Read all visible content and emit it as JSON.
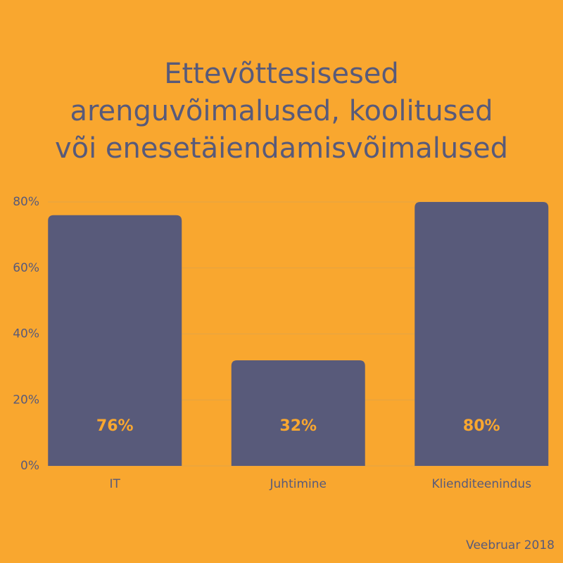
{
  "chart_data": {
    "type": "bar",
    "title": [
      "Ettevõttesisesed",
      "arenguvõimalused, koolitused",
      "või enesetäiendamisvõimalused"
    ],
    "categories": [
      "IT",
      "Juhtimine",
      "Klienditeenindus"
    ],
    "values": [
      76,
      32,
      80
    ],
    "value_labels": [
      "76%",
      "32%",
      "80%"
    ],
    "color": "#585a7a",
    "ylim": [
      0,
      80
    ],
    "yticks": [
      {
        "value": 0,
        "label": "0%"
      },
      {
        "value": 20,
        "label": "20%"
      },
      {
        "value": 40,
        "label": "40%"
      },
      {
        "value": 60,
        "label": "60%"
      },
      {
        "value": 80,
        "label": "80%"
      }
    ],
    "grid": true,
    "note": "Veebruar 2018"
  }
}
